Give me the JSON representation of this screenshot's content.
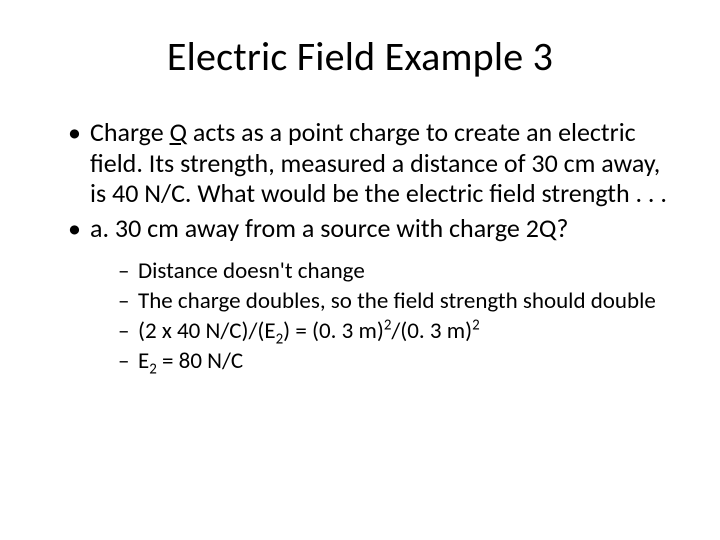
{
  "slide": {
    "background_color": "#ffffff",
    "text_color": "#000000",
    "font_family": "Calibri",
    "title": {
      "text": "Electric Field Example 3",
      "fontsize": 40,
      "align": "center"
    },
    "bullets_level1_fontsize": 26,
    "bullets_level2_fontsize": 23,
    "bullets": [
      {
        "pre": "Charge ",
        "q": "Q",
        "post": " acts as a point charge to create an electric field. Its strength, measured a distance of 30 cm away, is 40 N/C. What would be the electric field strength . . ."
      },
      {
        "text": "a. 30 cm away from a source with charge 2Q?"
      }
    ],
    "subbullets": [
      {
        "text": "Distance doesn't change"
      },
      {
        "text": "The charge doubles, so the field strength should double"
      },
      {
        "a": "(2 x 40 N/C)/(E",
        "s2a": "2",
        "b": ") = (0. 3 m)",
        "sup1": "2",
        "c": "/(0. 3 m)",
        "sup2": "2"
      },
      {
        "a": "E",
        "s2": "2",
        "b": " = 80 N/C"
      }
    ]
  }
}
